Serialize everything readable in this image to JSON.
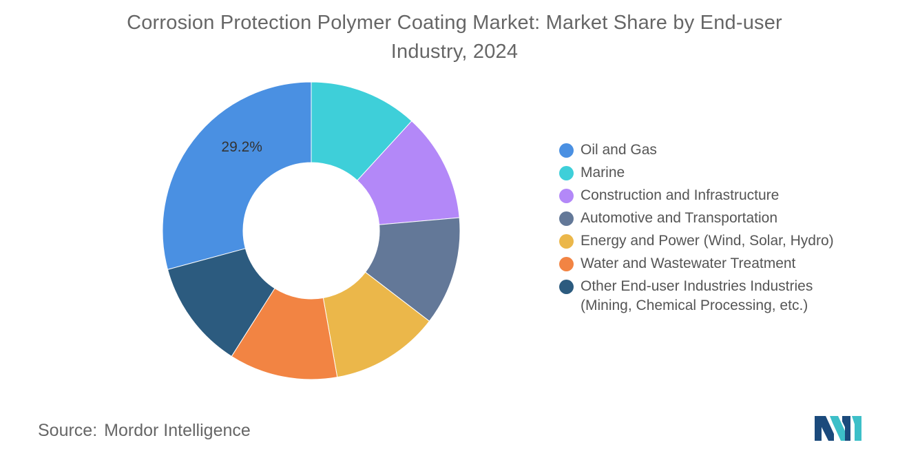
{
  "chart_data": {
    "type": "pie",
    "title_line1": "Corrosion Protection Polymer Coating Market: Market Share by End-user",
    "title_line2": "Industry, 2024",
    "categories": [
      "Oil and Gas",
      "Marine",
      "Construction and Infrastructure",
      "Automotive and Transportation",
      "Energy and Power (Wind, Solar, Hydro)",
      "Water and Wastewater Treatment",
      "Other End-user Industries Industries (Mining, Chemical Processing, etc.)"
    ],
    "values": [
      29.2,
      11.8,
      11.8,
      11.8,
      11.8,
      11.8,
      11.8
    ],
    "colors": [
      "#4a90e2",
      "#3ecfd9",
      "#b388f8",
      "#637898",
      "#ebb74a",
      "#f28443",
      "#2c5b7f"
    ],
    "data_labels": [
      {
        "category": "Oil and Gas",
        "text": "29.2%"
      }
    ],
    "legend_position": "right",
    "legend": [
      {
        "lines": [
          "Oil and Gas"
        ]
      },
      {
        "lines": [
          "Marine"
        ]
      },
      {
        "lines": [
          "Construction and Infrastructure"
        ]
      },
      {
        "lines": [
          "Automotive and Transportation"
        ]
      },
      {
        "lines": [
          "Energy and Power (Wind, Solar, Hydro)"
        ]
      },
      {
        "lines": [
          "Water and Wastewater Treatment"
        ]
      },
      {
        "lines": [
          "Other End-user Industries Industries",
          "(Mining, Chemical Processing, etc.)"
        ]
      }
    ]
  },
  "footer": {
    "source_label": "Source:",
    "source_name": "Mordor Intelligence"
  },
  "logo": {
    "icon": "mordor-intelligence-logo",
    "colors": [
      "#1b4a7c",
      "#3dbfc8"
    ]
  }
}
